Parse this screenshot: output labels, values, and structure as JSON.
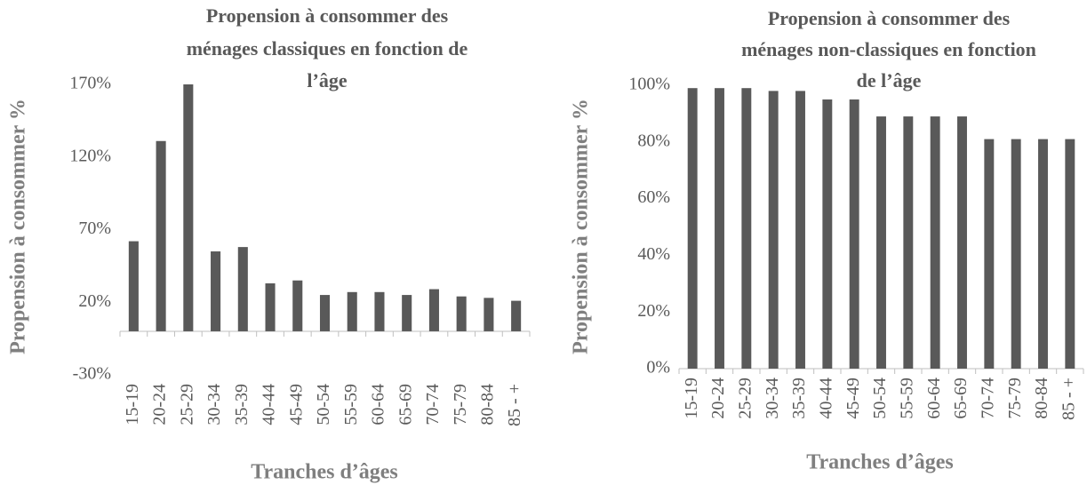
{
  "chart_data": [
    {
      "type": "bar",
      "title": [
        "Propension à consommer des",
        "ménages classiques en fonction de",
        "l’âge"
      ],
      "y_label": "Propension à consommer %",
      "x_label": "Tranches d’âges",
      "categories": [
        "15-19",
        "20-24",
        "25-29",
        "30-34",
        "35-39",
        "40-44",
        "45-49",
        "50-54",
        "55-59",
        "60-64",
        "65-69",
        "70-74",
        "75-79",
        "80-84",
        "85 - +"
      ],
      "values": [
        62,
        131,
        170,
        55,
        58,
        33,
        35,
        25,
        27,
        27,
        25,
        29,
        24,
        23,
        21
      ],
      "color": "#595959",
      "ylim": [
        -30,
        170
      ],
      "yticks": [
        {
          "value": -30,
          "label": "-30%"
        },
        {
          "value": 20,
          "label": "20%"
        },
        {
          "value": 70,
          "label": "70%"
        },
        {
          "value": 120,
          "label": "120%"
        },
        {
          "value": 170,
          "label": "170%"
        }
      ],
      "grid": false
    },
    {
      "type": "bar",
      "title": [
        "Propension à consommer des",
        "ménages non-classiques en fonction",
        "de l’âge"
      ],
      "y_label": "Propension à consommer %",
      "x_label": "Tranches d’âges",
      "categories": [
        "15-19",
        "20-24",
        "25-29",
        "30-34",
        "35-39",
        "40-44",
        "45-49",
        "50-54",
        "55-59",
        "60-64",
        "65-69",
        "70-74",
        "75-79",
        "80-84",
        "85 - +"
      ],
      "values": [
        99,
        99,
        99,
        98,
        98,
        95,
        95,
        89,
        89,
        89,
        89,
        81,
        81,
        81,
        81
      ],
      "color": "#595959",
      "ylim": [
        0,
        100
      ],
      "yticks": [
        {
          "value": 0,
          "label": "0%"
        },
        {
          "value": 20,
          "label": "20%"
        },
        {
          "value": 40,
          "label": "40%"
        },
        {
          "value": 60,
          "label": "60%"
        },
        {
          "value": 80,
          "label": "80%"
        },
        {
          "value": 100,
          "label": "100%"
        }
      ],
      "grid": false
    }
  ]
}
